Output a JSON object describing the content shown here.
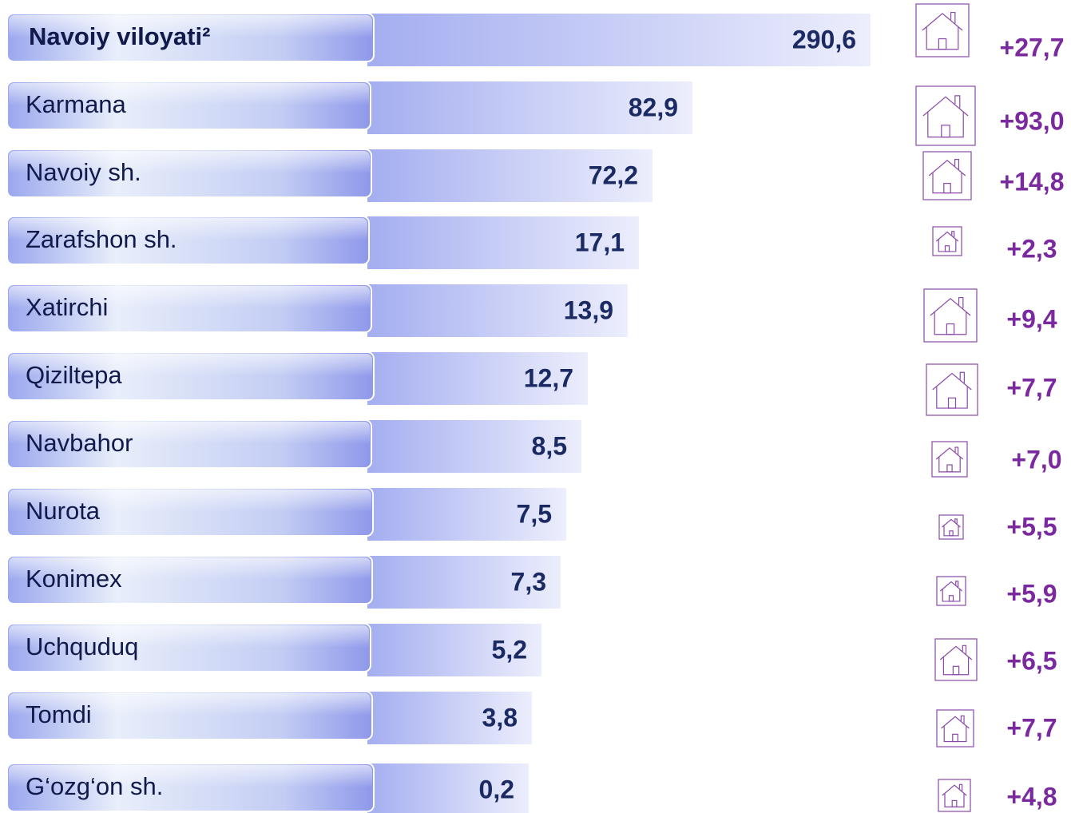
{
  "rows": [
    {
      "name": "Navoiy viloyati²",
      "value": "290,6",
      "change": "+27,7"
    },
    {
      "name": "Karmana",
      "value": "82,9",
      "change": "+93,0"
    },
    {
      "name": "Navoiy sh.",
      "value": "72,2",
      "change": "+14,8"
    },
    {
      "name": "Zarafshon sh.",
      "value": "17,1",
      "change": "+2,3"
    },
    {
      "name": "Xatirchi",
      "value": "13,9",
      "change": "+9,4"
    },
    {
      "name": "Qiziltepa",
      "value": "12,7",
      "change": "+7,7"
    },
    {
      "name": "Navbahor",
      "value": "8,5",
      "change": "+7,0"
    },
    {
      "name": "Nurota",
      "value": "7,5",
      "change": "+5,5"
    },
    {
      "name": "Konimex",
      "value": "7,3",
      "change": "+5,9"
    },
    {
      "name": "Uchquduq",
      "value": "5,2",
      "change": "+6,5"
    },
    {
      "name": "Tomdi",
      "value": "3,8",
      "change": "+7,7"
    },
    {
      "name": "G‘ozg‘on sh.",
      "value": "0,2",
      "change": "+4,8"
    }
  ]
}
